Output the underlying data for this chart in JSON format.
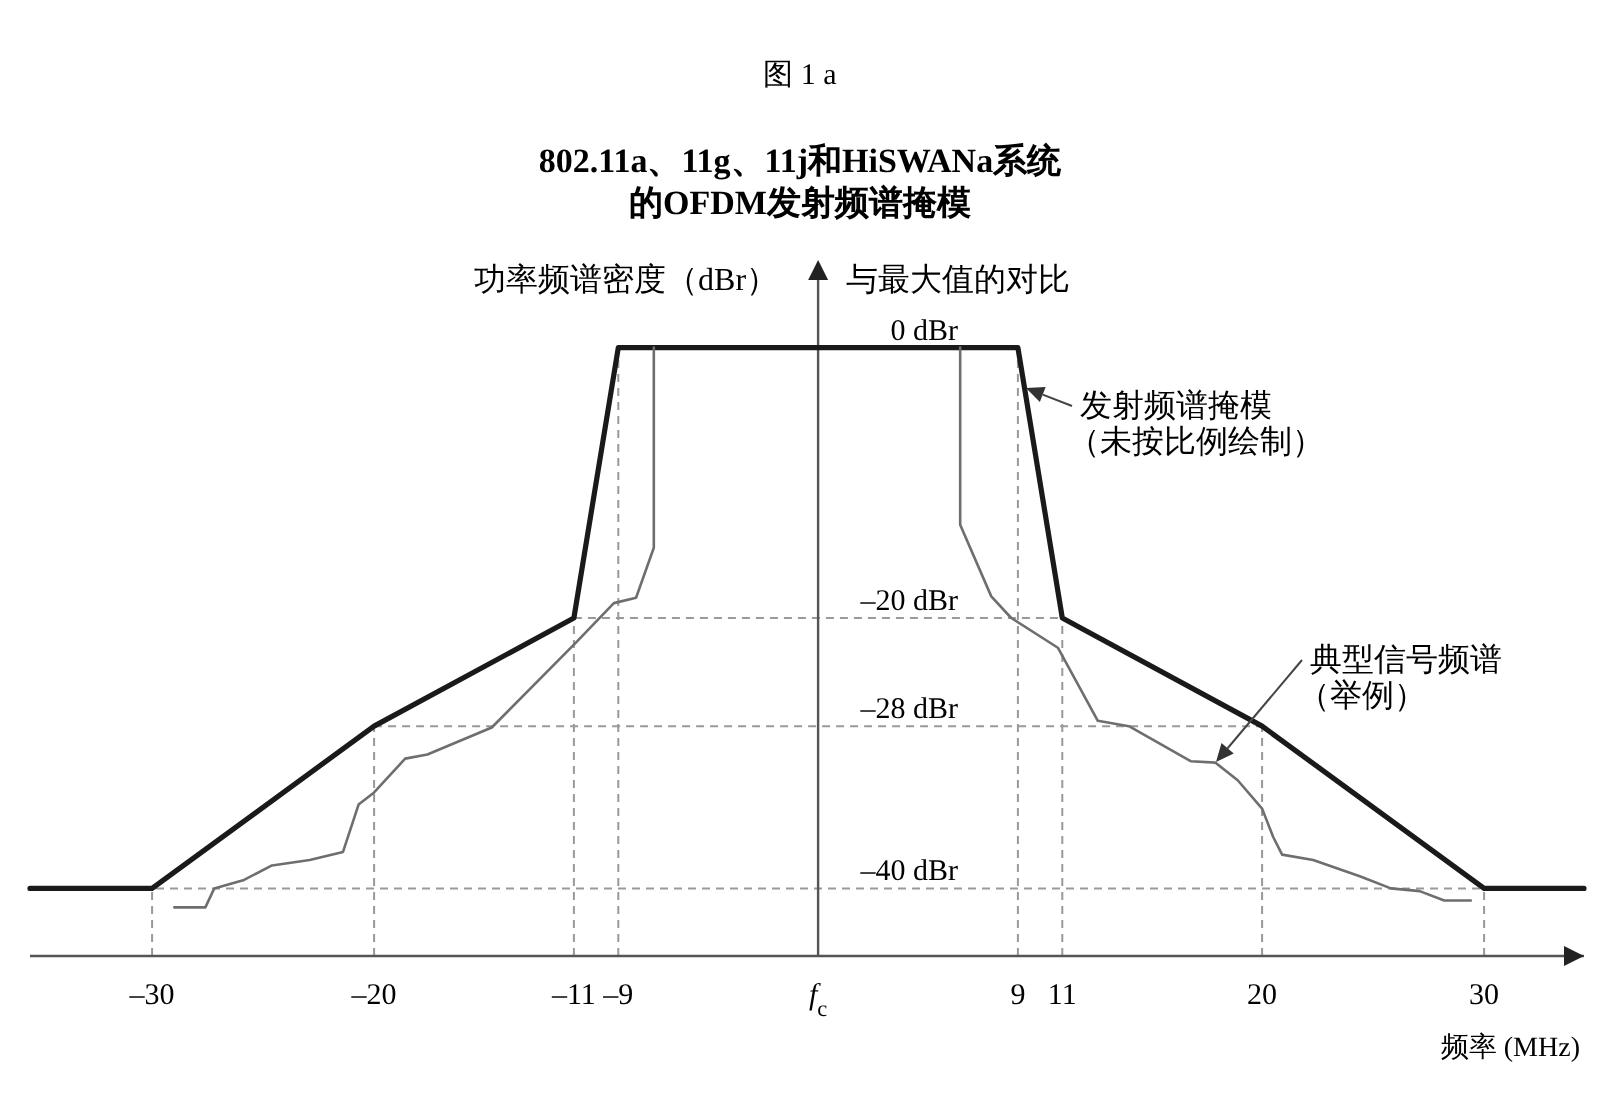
{
  "chart_data": {
    "type": "line",
    "title": "802.11a、11g、11j和HiSWANa系统的OFDM发射频谱掩模",
    "ylabel": "功率频谱密度（dBr）",
    "xlabel": "频率 (MHz)",
    "annotations": [
      "图 1 a",
      "与最大值的对比",
      "发射频谱掩模（未按比例绘制）",
      "典型信号频谱（举例）"
    ],
    "xlim": [
      -35.5,
      34.5
    ],
    "xticks": [
      {
        "value": -30,
        "label": "–30"
      },
      {
        "value": -20,
        "label": "–20"
      },
      {
        "value": -11,
        "label": "–11"
      },
      {
        "value": -9,
        "label": "–9"
      },
      {
        "value": 0,
        "label": "f$_{c}$"
      },
      9,
      11,
      20,
      30
    ],
    "ylim": [
      -45,
      5
    ],
    "yticks": [
      {
        "value": -40,
        "label": "–40 dBr"
      },
      {
        "value": -28,
        "label": "–28 dBr"
      },
      {
        "value": -20,
        "label": "–20 dBr"
      },
      {
        "value": 0,
        "label": "0 dBr"
      }
    ],
    "ref_lines": [
      {
        "axis": "y",
        "value": -20,
        "color": "#999999",
        "line_style": "dashed"
      },
      {
        "axis": "y",
        "value": -28,
        "color": "#999999",
        "line_style": "dashed"
      },
      {
        "axis": "y",
        "value": -40,
        "color": "#999999",
        "line_style": "dashed"
      },
      {
        "axis": "x",
        "value": -30,
        "color": "#999999",
        "line_style": "dashed"
      },
      {
        "axis": "x",
        "value": -20,
        "color": "#999999",
        "line_style": "dashed"
      },
      {
        "axis": "x",
        "value": -11,
        "color": "#999999",
        "line_style": "dashed"
      },
      {
        "axis": "x",
        "value": -9,
        "color": "#999999",
        "line_style": "dashed"
      },
      {
        "axis": "x",
        "value": 9,
        "color": "#999999",
        "line_style": "dashed"
      },
      {
        "axis": "x",
        "value": 11,
        "color": "#999999",
        "line_style": "dashed"
      },
      {
        "axis": "x",
        "value": 20,
        "color": "#999999",
        "line_style": "dashed"
      },
      {
        "axis": "x",
        "value": 30,
        "color": "#999999",
        "line_style": "dashed"
      }
    ],
    "marker": "none",
    "line_style": "solid",
    "series": [
      {
        "color": "#1a1a1a",
        "x": [
          -35.5,
          -30,
          -20,
          -11,
          -9,
          9,
          11,
          20,
          30,
          34.5
        ],
        "values": [
          -40,
          -40,
          -28,
          -20,
          0,
          0,
          -20,
          -28,
          -40,
          -40
        ]
      },
      {
        "color": "#6e6e6e",
        "x": [
          -29.0,
          -27.6,
          -27.2,
          -25.9,
          -24.6,
          -22.9,
          -21.4,
          -20.7,
          -20.0,
          -18.6,
          -17.6,
          -14.7,
          -10.9,
          -9.2,
          -8.2,
          -7.4,
          -7.4,
          0,
          6.4,
          6.4,
          7.8,
          8.7,
          10.8,
          12.6,
          14.0,
          16.8,
          17.9,
          18.9,
          20.0,
          20.5,
          20.9,
          22.3,
          24.4,
          25.8,
          27.1,
          28.2,
          29.4
        ],
        "values": [
          -41.4,
          -41.4,
          -40,
          -39.4,
          -38.3,
          -37.9,
          -37.3,
          -33.8,
          -32.9,
          -30.4,
          -30.1,
          -28.1,
          -21.8,
          -18.9,
          -18.5,
          -14.8,
          0,
          null,
          0,
          -13.1,
          -18.4,
          -20,
          -22.2,
          -27.6,
          -28,
          -30.6,
          -30.7,
          -32,
          -34.1,
          -36.2,
          -37.5,
          -37.9,
          -39.1,
          -40,
          -40.2,
          -40.9,
          -40.9
        ]
      }
    ]
  }
}
